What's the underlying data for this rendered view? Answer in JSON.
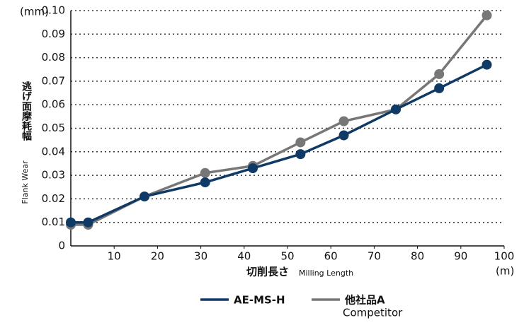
{
  "chart_data": {
    "type": "line",
    "y_unit": "(mm)",
    "x_unit": "(m)",
    "y_label": "逃げ面摩耗幅",
    "y_label_en": "Flank Wear",
    "x_label": "切削長さ",
    "x_label_en": "Milling Length",
    "x": [
      0,
      4,
      17,
      31,
      42,
      53,
      63,
      75,
      85,
      96
    ],
    "series": [
      {
        "name": "AE-MS-H",
        "color": "#0f3a66",
        "values": [
          0.01,
          0.01,
          0.021,
          0.027,
          0.033,
          0.039,
          0.047,
          0.058,
          0.067,
          0.077
        ]
      },
      {
        "name": "他社品A",
        "subtitle": "Competitor",
        "color": "#777777",
        "values": [
          0.009,
          0.009,
          0.021,
          0.031,
          0.034,
          0.044,
          0.053,
          0.058,
          0.073,
          0.098
        ]
      }
    ],
    "xlim": [
      0,
      100
    ],
    "xticks": [
      10,
      20,
      30,
      40,
      50,
      60,
      70,
      80,
      90,
      100
    ],
    "ylim": [
      0,
      0.1
    ],
    "yticks": [
      0,
      0.01,
      0.02,
      0.03,
      0.04,
      0.05,
      0.06,
      0.07,
      0.08,
      0.09,
      {
        "value": 0.1,
        "label": "0.10"
      }
    ],
    "grid": true
  }
}
